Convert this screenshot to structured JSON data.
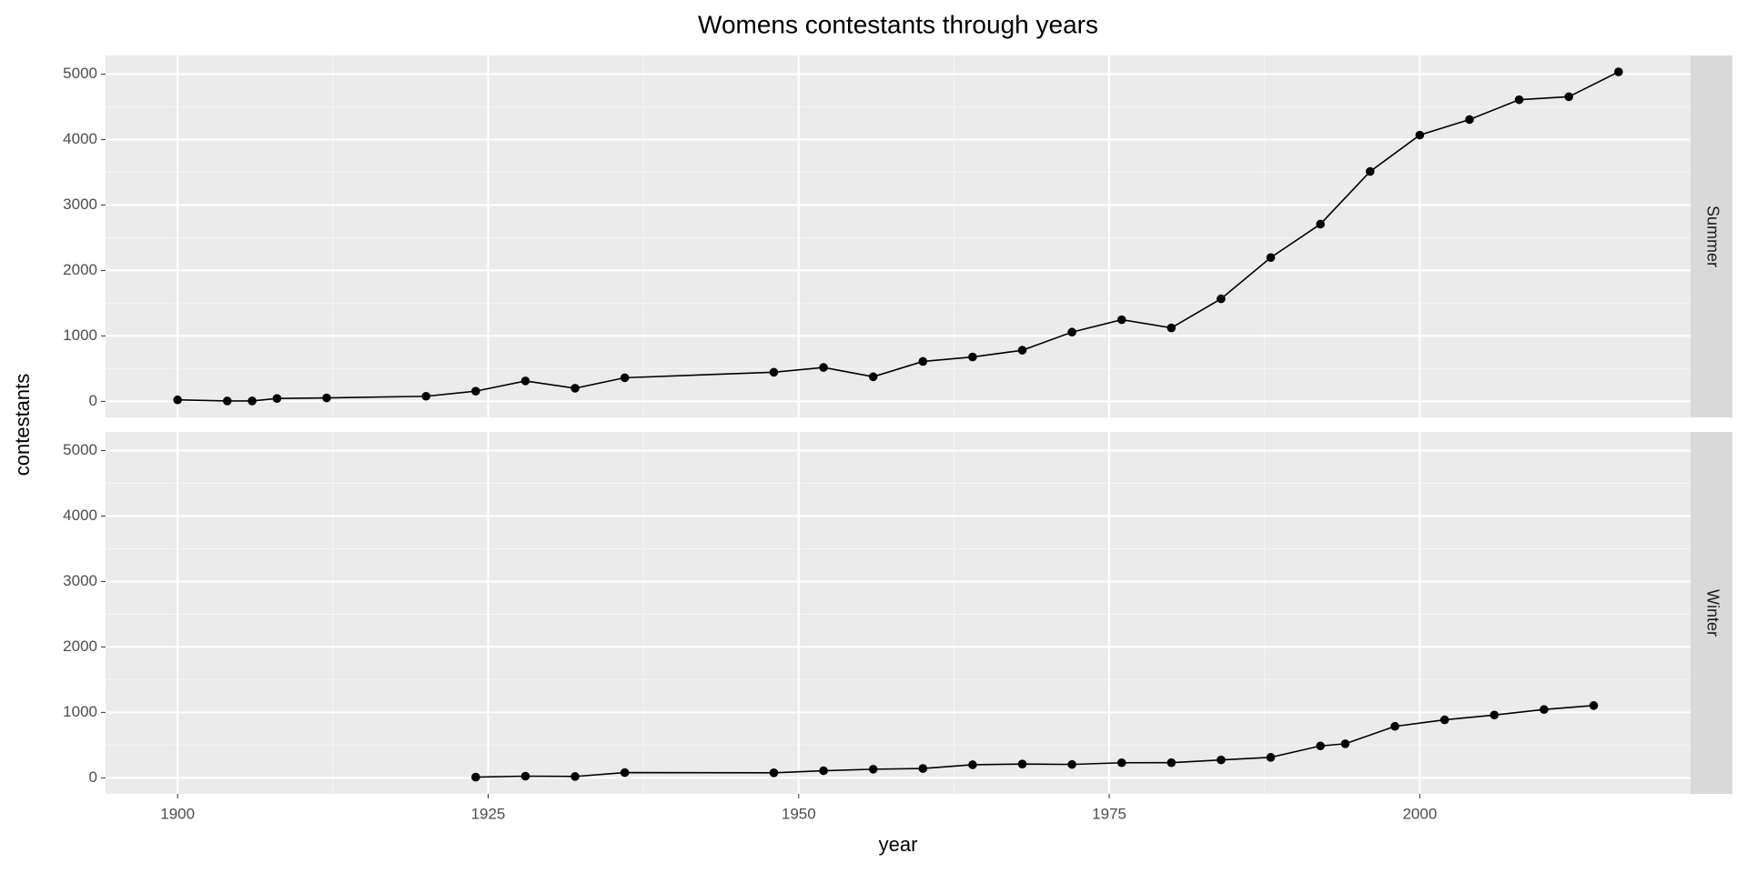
{
  "chart_data": {
    "type": "line",
    "title": "Womens contestants through years",
    "x_label": "year",
    "y_label": "contestants",
    "xlim": [
      1894.2,
      2021.8
    ],
    "xticks": [
      1900,
      1925,
      1950,
      1975,
      2000
    ],
    "ylim": [
      -245,
      5285
    ],
    "yticks": [
      0,
      1000,
      2000,
      3000,
      4000,
      5000
    ],
    "grid": true,
    "series": [
      {
        "name": "Summer",
        "color": "#000000",
        "x": [
          1900,
          1904,
          1906,
          1908,
          1912,
          1920,
          1924,
          1928,
          1932,
          1936,
          1948,
          1952,
          1956,
          1960,
          1964,
          1968,
          1972,
          1976,
          1980,
          1984,
          1988,
          1992,
          1996,
          2000,
          2004,
          2008,
          2012,
          2016
        ],
        "values": [
          23,
          6,
          6,
          44,
          53,
          78,
          156,
          312,
          201,
          361,
          445,
          518,
          376,
          610,
          678,
          781,
          1058,
          1247,
          1123,
          1567,
          2197,
          2708,
          3512,
          4069,
          4306,
          4609,
          4655,
          5034
        ]
      },
      {
        "name": "Winter",
        "color": "#000000",
        "x": [
          1924,
          1928,
          1932,
          1936,
          1948,
          1952,
          1956,
          1960,
          1964,
          1968,
          1972,
          1976,
          1980,
          1984,
          1988,
          1992,
          1994,
          1998,
          2002,
          2006,
          2010,
          2014
        ],
        "values": [
          11,
          26,
          21,
          80,
          77,
          109,
          132,
          143,
          200,
          211,
          205,
          231,
          232,
          274,
          313,
          488,
          521,
          787,
          886,
          960,
          1044,
          1105
        ]
      }
    ]
  }
}
